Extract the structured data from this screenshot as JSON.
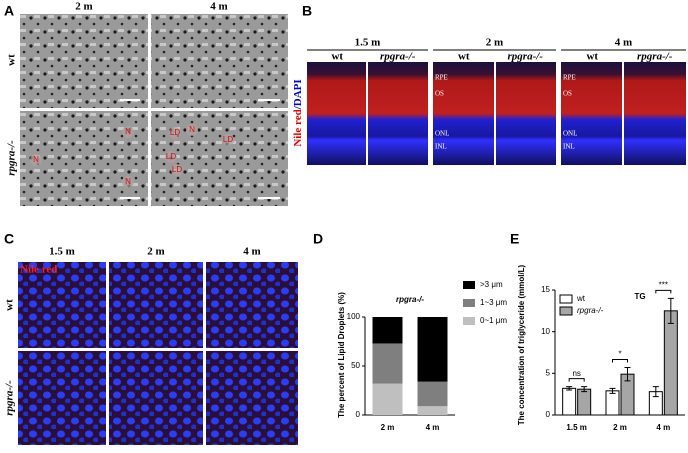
{
  "panel_labels": [
    "A",
    "B",
    "C",
    "D",
    "E"
  ],
  "panel_a": {
    "columns": [
      "2 m",
      "4 m"
    ],
    "rows": [
      "wt",
      "rpgra-/-"
    ],
    "annotations": [
      "N",
      "N",
      "N",
      "LD",
      "N",
      "LD",
      "LD",
      "LD"
    ]
  },
  "panel_b": {
    "y_label_red": "Nile red",
    "y_label_blue": "/DAPI",
    "groups": [
      "1.5 m",
      "2 m",
      "4 m"
    ],
    "genotypes": [
      "wt",
      "rpgra-/-"
    ],
    "layers": [
      "RPE",
      "OS",
      "ONL",
      "INL"
    ]
  },
  "panel_c": {
    "columns": [
      "1.5 m",
      "2 m",
      "4 m"
    ],
    "rows": [
      "wt",
      "rpgra-/-"
    ],
    "stain": "Nile red"
  },
  "chart_data": [
    {
      "type": "stacked_bar",
      "title": "rpgra-/-",
      "y_label": "The percent of Lipid Droplets (%)",
      "categories": [
        "2 m",
        "4 m"
      ],
      "series": [
        {
          "name": ">3 μm",
          "color": "#000000",
          "values": [
            27,
            66
          ]
        },
        {
          "name": "1~3 μm",
          "color": "#7f7f7f",
          "values": [
            41,
            25
          ]
        },
        {
          "name": "0~1 μm",
          "color": "#bfbfbf",
          "values": [
            32,
            9
          ]
        }
      ],
      "ylim": [
        0,
        100
      ],
      "yticks": [
        0,
        50,
        100
      ]
    },
    {
      "type": "bar",
      "title": "TG",
      "y_label": "The concentration of triglyceride (mmol/L)",
      "categories": [
        "1.5 m",
        "2 m",
        "4 m"
      ],
      "series": [
        {
          "name": "wt",
          "color": "#ffffff",
          "values": [
            3.2,
            2.9,
            2.8
          ],
          "errors": [
            0.2,
            0.3,
            0.6
          ]
        },
        {
          "name": "rpgra-/-",
          "color": "#a6a6a6",
          "values": [
            3.1,
            4.9,
            12.5
          ],
          "errors": [
            0.3,
            0.8,
            1.5
          ]
        }
      ],
      "annotations": [
        "ns",
        "*",
        "***"
      ],
      "ylim": [
        0,
        15
      ],
      "yticks": [
        0,
        5,
        10,
        15
      ]
    }
  ]
}
